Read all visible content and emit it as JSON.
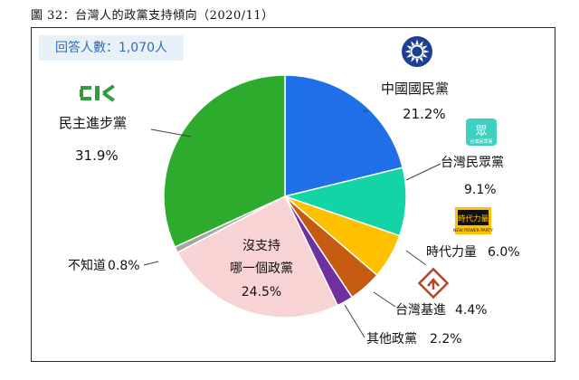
{
  "figure_title": "圖 32：台灣人的政黨支持傾向（2020/11）",
  "respondents_text": "回答人數：1,070人",
  "colors": {
    "kmt": "#1f6fe8",
    "tpp": "#12d4a5",
    "npp": "#ffc000",
    "tsp": "#c55a11",
    "other": "#7030a0",
    "none": "#f8d3d3",
    "unknown": "#a6a6a6",
    "dpp": "#2dab2d"
  },
  "chart_data": {
    "type": "pie",
    "title": "",
    "start_angle_deg": 0,
    "direction": "clockwise",
    "slices": [
      {
        "key": "kmt",
        "label": "中國國民黨",
        "value": 21.2,
        "value_text": "21.2%",
        "color": "#1f6fe8",
        "logo": "kmt-sun-emblem-icon"
      },
      {
        "key": "tpp",
        "label": "台灣民眾黨",
        "value": 9.1,
        "value_text": "9.1%",
        "color": "#12d4a5",
        "logo": "tpp-logo-icon"
      },
      {
        "key": "npp",
        "label": "時代力量",
        "value": 6.0,
        "value_text": "6.0%",
        "color": "#ffc000",
        "logo": "npp-logo-icon"
      },
      {
        "key": "tsp",
        "label": "台灣基進",
        "value": 4.4,
        "value_text": "4.4%",
        "color": "#c55a11",
        "logo": "tsp-logo-icon"
      },
      {
        "key": "other",
        "label": "其他政黨",
        "value": 2.2,
        "value_text": "2.2%",
        "color": "#7030a0"
      },
      {
        "key": "none",
        "label": "沒支持\n哪一個政黨",
        "label_line1": "沒支持",
        "label_line2": "哪一個政黨",
        "value": 24.5,
        "value_text": "24.5%",
        "color": "#f8d3d3"
      },
      {
        "key": "unknown",
        "label": "不知道",
        "value": 0.8,
        "value_text": "0.8%",
        "color": "#a6a6a6"
      },
      {
        "key": "dpp",
        "label": "民主進步黨",
        "value": 31.9,
        "value_text": "31.9%",
        "color": "#2dab2d",
        "logo": "dpp-logo-icon"
      }
    ]
  },
  "logos": {
    "tpp_text": "眾",
    "tpp_subtext": "台灣民眾黨",
    "npp_text": "時代力量",
    "npp_subtext": "NEW POWER PARTY"
  }
}
